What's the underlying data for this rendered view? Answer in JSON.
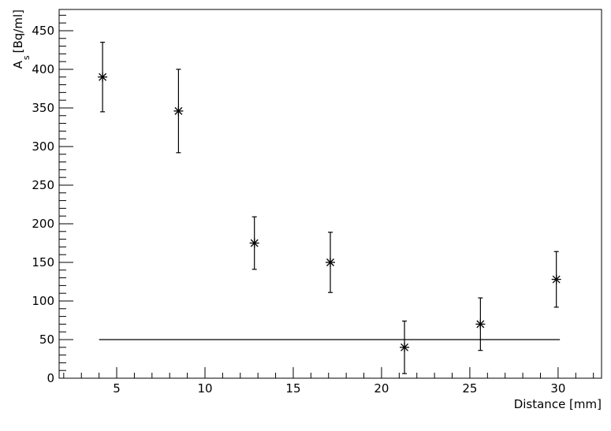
{
  "chart_data": {
    "type": "scatter",
    "xlabel": "Distance [mm]",
    "ylabel": {
      "main": "A",
      "sub": "s",
      "unit": "[Bq/ml]"
    },
    "x": [
      4.2,
      8.5,
      12.8,
      17.1,
      21.3,
      25.6,
      29.9
    ],
    "series": [
      {
        "values": [
          390,
          346,
          175,
          150,
          40,
          70,
          128
        ],
        "errors": [
          45,
          54,
          34,
          39,
          34,
          34,
          36
        ],
        "color": "#000000"
      }
    ],
    "reference_line": {
      "y": 50,
      "x": [
        4.0,
        30.1
      ]
    },
    "xlim": [
      1.74,
      32.46
    ],
    "ylim": [
      0,
      477.5
    ],
    "xticks": [
      5,
      10,
      15,
      20,
      25,
      30
    ],
    "yticks": [
      0,
      50,
      100,
      150,
      200,
      250,
      300,
      350,
      400,
      450
    ],
    "xminorticks": [
      2,
      3,
      4,
      6,
      7,
      8,
      9,
      11,
      12,
      13,
      14,
      16,
      17,
      18,
      19,
      21,
      22,
      23,
      24,
      26,
      27,
      28,
      29,
      31,
      32
    ],
    "yminorticks": [
      10,
      20,
      30,
      40,
      60,
      70,
      80,
      90,
      110,
      120,
      130,
      140,
      160,
      170,
      180,
      190,
      210,
      220,
      230,
      240,
      260,
      270,
      280,
      290,
      310,
      320,
      330,
      340,
      360,
      370,
      380,
      390,
      410,
      420,
      430,
      440,
      460,
      470
    ]
  }
}
